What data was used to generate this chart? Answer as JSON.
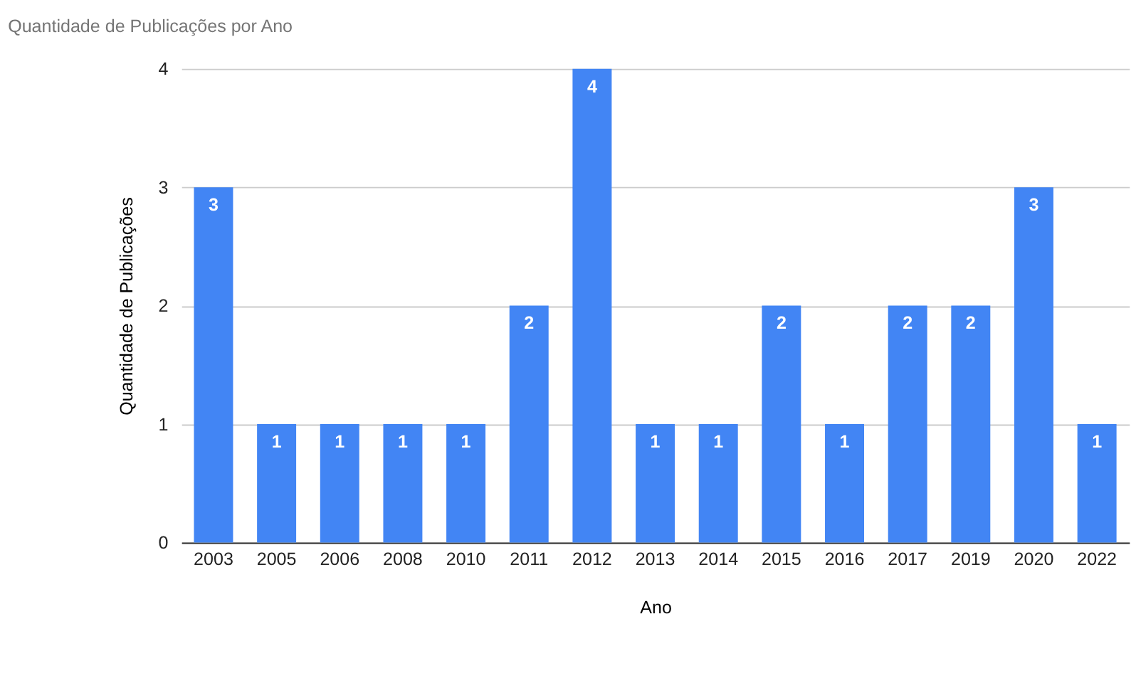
{
  "chart_data": {
    "type": "bar",
    "title": "Quantidade de Publicações por Ano",
    "xlabel": "Ano",
    "ylabel": "Quantidade de Publicações",
    "categories": [
      "2003",
      "2005",
      "2006",
      "2008",
      "2010",
      "2011",
      "2012",
      "2013",
      "2014",
      "2015",
      "2016",
      "2017",
      "2019",
      "2020",
      "2022"
    ],
    "values": [
      3,
      1,
      1,
      1,
      1,
      2,
      4,
      1,
      1,
      2,
      1,
      2,
      2,
      3,
      1
    ],
    "color": "#4285f4",
    "ylim": [
      0,
      4
    ],
    "yticks": [
      0,
      1,
      2,
      3,
      4
    ],
    "grid": "y",
    "data_labels": true
  }
}
